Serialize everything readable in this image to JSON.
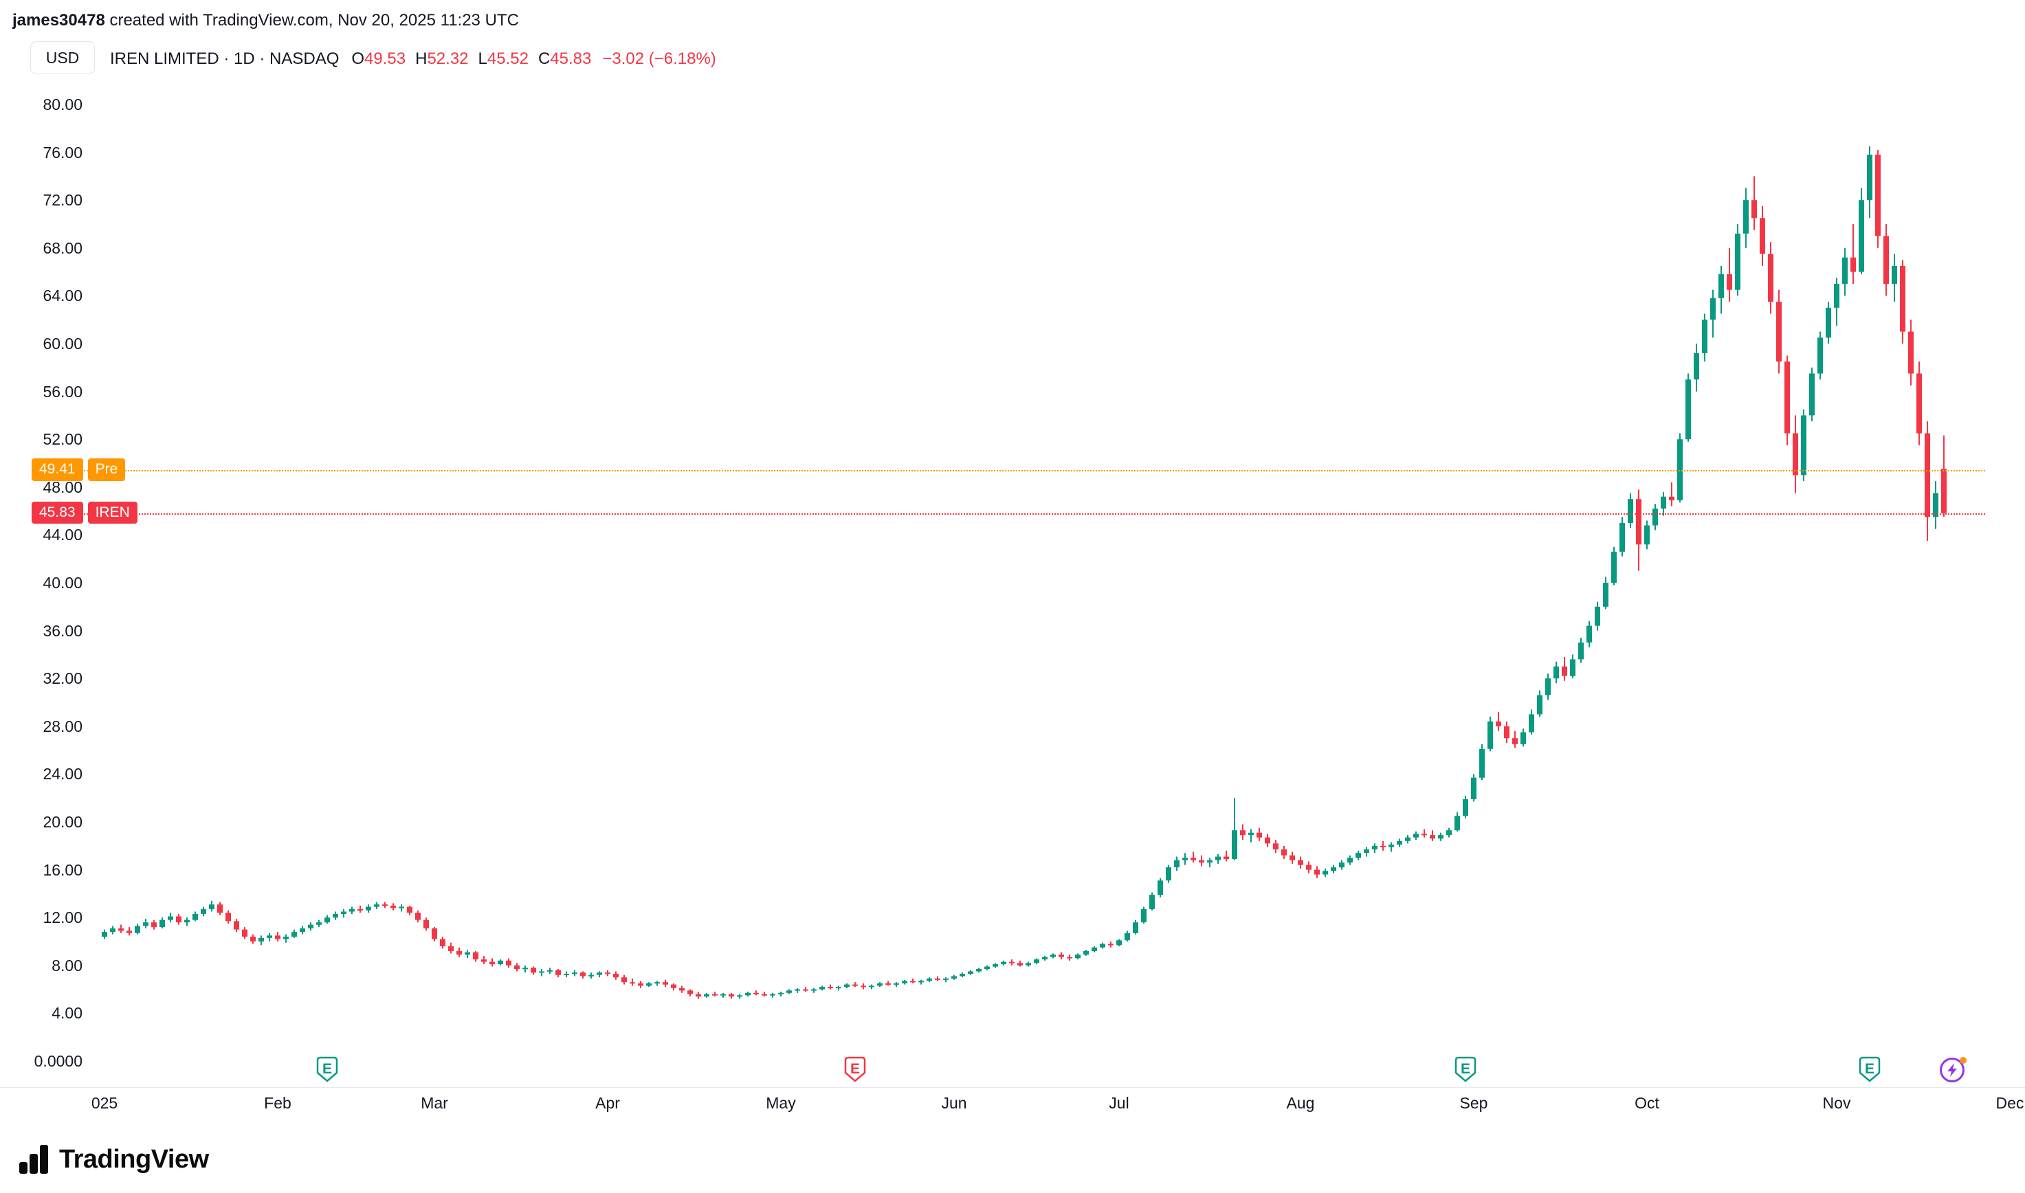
{
  "header": {
    "username": "james30478",
    "credit": " created with TradingView.com, Nov 20, 2025 11:23 UTC"
  },
  "toolbar": {
    "currency": "USD"
  },
  "legend": {
    "title": "IREN LIMITED · 1D · NASDAQ",
    "open_label": "O",
    "open": "49.53",
    "high_label": "H",
    "high": "52.32",
    "low_label": "L",
    "low": "45.52",
    "close_label": "C",
    "close": "45.83",
    "change": "−3.02 (−6.18%)"
  },
  "price_lines": {
    "premarket": {
      "value": "49.41",
      "tag": "Pre",
      "price": 49.41,
      "color": "#ff9800"
    },
    "last": {
      "value": "45.83",
      "tag": "IREN",
      "price": 45.83,
      "color": "#f23645"
    }
  },
  "footer": {
    "brand": "TradingView"
  },
  "colors": {
    "up": "#089981",
    "down": "#f23645",
    "pre_line": "#ff9800",
    "last_line": "#f23645",
    "text": "#131722",
    "upcoming": "#9334ea",
    "upcoming_dot": "#f7931a"
  },
  "chart_data": {
    "type": "candlestick",
    "title": "IREN LIMITED · 1D · NASDAQ",
    "ylabel": "USD",
    "ylim": [
      0,
      82
    ],
    "grid": false,
    "legend_position": "top-left",
    "earnings_letter": "E",
    "y_ticks": [
      {
        "price": 80,
        "label": "80.00"
      },
      {
        "price": 76,
        "label": "76.00"
      },
      {
        "price": 72,
        "label": "72.00"
      },
      {
        "price": 68,
        "label": "68.00"
      },
      {
        "price": 64,
        "label": "64.00"
      },
      {
        "price": 60,
        "label": "60.00"
      },
      {
        "price": 56,
        "label": "56.00"
      },
      {
        "price": 52,
        "label": "52.00"
      },
      {
        "price": 48,
        "label": "48.00"
      },
      {
        "price": 44,
        "label": "44.00"
      },
      {
        "price": 40,
        "label": "40.00"
      },
      {
        "price": 36,
        "label": "36.00"
      },
      {
        "price": 32,
        "label": "32.00"
      },
      {
        "price": 28,
        "label": "28.00"
      },
      {
        "price": 24,
        "label": "24.00"
      },
      {
        "price": 20,
        "label": "20.00"
      },
      {
        "price": 16,
        "label": "16.00"
      },
      {
        "price": 12,
        "label": "12.00"
      },
      {
        "price": 8,
        "label": "8.00"
      },
      {
        "price": 4,
        "label": "4.00"
      },
      {
        "price": 0,
        "label": "0.0000"
      }
    ],
    "x_ticks": [
      {
        "label": "025",
        "index": 0
      },
      {
        "label": "Feb",
        "index": 21
      },
      {
        "label": "Mar",
        "index": 40
      },
      {
        "label": "Apr",
        "index": 61
      },
      {
        "label": "May",
        "index": 82
      },
      {
        "label": "Jun",
        "index": 103
      },
      {
        "label": "Jul",
        "index": 123
      },
      {
        "label": "Aug",
        "index": 145
      },
      {
        "label": "Sep",
        "index": 166
      },
      {
        "label": "Oct",
        "index": 187
      },
      {
        "label": "Nov",
        "index": 210
      },
      {
        "label": "Dec",
        "index": 231
      }
    ],
    "earnings_markers": [
      {
        "index": 27,
        "color": "#089981"
      },
      {
        "index": 91,
        "color": "#f23645"
      },
      {
        "index": 165,
        "color": "#089981"
      },
      {
        "index": 214,
        "color": "#089981"
      }
    ],
    "upcoming_marker": {
      "index": 224
    },
    "candles": [
      [
        10.4,
        11.0,
        10.2,
        10.8
      ],
      [
        10.8,
        11.3,
        10.6,
        11.1
      ],
      [
        11.1,
        11.4,
        10.7,
        10.9
      ],
      [
        10.9,
        11.2,
        10.5,
        10.7
      ],
      [
        10.7,
        11.5,
        10.6,
        11.3
      ],
      [
        11.3,
        11.9,
        11.1,
        11.6
      ],
      [
        11.6,
        11.8,
        11.0,
        11.2
      ],
      [
        11.2,
        12.0,
        11.1,
        11.8
      ],
      [
        11.8,
        12.4,
        11.6,
        12.1
      ],
      [
        12.1,
        12.3,
        11.4,
        11.6
      ],
      [
        11.6,
        12.0,
        11.3,
        11.8
      ],
      [
        11.8,
        12.5,
        11.7,
        12.3
      ],
      [
        12.3,
        12.9,
        12.1,
        12.7
      ],
      [
        12.7,
        13.4,
        12.5,
        13.1
      ],
      [
        13.1,
        13.3,
        12.2,
        12.4
      ],
      [
        12.4,
        12.6,
        11.5,
        11.7
      ],
      [
        11.7,
        11.9,
        10.8,
        11.0
      ],
      [
        11.0,
        11.2,
        10.2,
        10.4
      ],
      [
        10.4,
        10.6,
        9.8,
        10.0
      ],
      [
        10.0,
        10.5,
        9.7,
        10.3
      ],
      [
        10.3,
        10.7,
        10.0,
        10.5
      ],
      [
        10.5,
        10.8,
        10.0,
        10.2
      ],
      [
        10.2,
        10.6,
        9.9,
        10.4
      ],
      [
        10.4,
        11.0,
        10.3,
        10.8
      ],
      [
        10.8,
        11.3,
        10.6,
        11.1
      ],
      [
        11.1,
        11.6,
        10.9,
        11.4
      ],
      [
        11.4,
        11.8,
        11.2,
        11.6
      ],
      [
        11.6,
        12.2,
        11.5,
        12.0
      ],
      [
        12.0,
        12.5,
        11.8,
        12.3
      ],
      [
        12.3,
        12.7,
        12.0,
        12.5
      ],
      [
        12.5,
        12.9,
        12.3,
        12.7
      ],
      [
        12.7,
        13.0,
        12.4,
        12.6
      ],
      [
        12.6,
        13.1,
        12.4,
        12.9
      ],
      [
        12.9,
        13.3,
        12.7,
        13.1
      ],
      [
        13.1,
        13.3,
        12.8,
        13.0
      ],
      [
        13.0,
        13.2,
        12.6,
        12.8
      ],
      [
        12.8,
        13.1,
        12.5,
        12.9
      ],
      [
        12.9,
        13.0,
        12.2,
        12.4
      ],
      [
        12.4,
        12.6,
        11.6,
        11.8
      ],
      [
        11.8,
        12.0,
        10.9,
        11.1
      ],
      [
        11.1,
        11.2,
        10.0,
        10.2
      ],
      [
        10.2,
        10.4,
        9.4,
        9.6
      ],
      [
        9.6,
        9.9,
        9.0,
        9.2
      ],
      [
        9.2,
        9.5,
        8.7,
        8.9
      ],
      [
        8.9,
        9.3,
        8.6,
        9.1
      ],
      [
        9.1,
        9.2,
        8.3,
        8.5
      ],
      [
        8.5,
        8.8,
        8.1,
        8.3
      ],
      [
        8.3,
        8.6,
        7.9,
        8.1
      ],
      [
        8.1,
        8.5,
        8.0,
        8.4
      ],
      [
        8.4,
        8.6,
        7.8,
        8.0
      ],
      [
        8.0,
        8.2,
        7.5,
        7.7
      ],
      [
        7.7,
        8.0,
        7.4,
        7.8
      ],
      [
        7.8,
        7.9,
        7.2,
        7.4
      ],
      [
        7.4,
        7.7,
        7.1,
        7.5
      ],
      [
        7.5,
        7.8,
        7.3,
        7.6
      ],
      [
        7.6,
        7.7,
        7.0,
        7.2
      ],
      [
        7.2,
        7.5,
        7.0,
        7.3
      ],
      [
        7.3,
        7.6,
        7.1,
        7.4
      ],
      [
        7.4,
        7.5,
        6.9,
        7.1
      ],
      [
        7.1,
        7.4,
        6.9,
        7.2
      ],
      [
        7.2,
        7.5,
        7.0,
        7.4
      ],
      [
        7.4,
        7.6,
        7.1,
        7.3
      ],
      [
        7.3,
        7.5,
        6.8,
        7.0
      ],
      [
        7.0,
        7.2,
        6.4,
        6.6
      ],
      [
        6.6,
        6.9,
        6.3,
        6.5
      ],
      [
        6.5,
        6.7,
        6.1,
        6.3
      ],
      [
        6.3,
        6.6,
        6.2,
        6.5
      ],
      [
        6.5,
        6.7,
        6.3,
        6.6
      ],
      [
        6.6,
        6.8,
        6.2,
        6.4
      ],
      [
        6.4,
        6.5,
        5.9,
        6.1
      ],
      [
        6.1,
        6.3,
        5.7,
        5.9
      ],
      [
        5.9,
        6.0,
        5.4,
        5.6
      ],
      [
        5.6,
        5.8,
        5.2,
        5.4
      ],
      [
        5.4,
        5.7,
        5.3,
        5.6
      ],
      [
        5.6,
        5.8,
        5.4,
        5.5
      ],
      [
        5.5,
        5.7,
        5.3,
        5.6
      ],
      [
        5.6,
        5.7,
        5.2,
        5.4
      ],
      [
        5.4,
        5.6,
        5.2,
        5.5
      ],
      [
        5.5,
        5.8,
        5.4,
        5.7
      ],
      [
        5.7,
        5.9,
        5.5,
        5.6
      ],
      [
        5.6,
        5.8,
        5.4,
        5.5
      ],
      [
        5.5,
        5.7,
        5.3,
        5.6
      ],
      [
        5.6,
        5.8,
        5.4,
        5.7
      ],
      [
        5.7,
        6.0,
        5.6,
        5.9
      ],
      [
        5.9,
        6.1,
        5.7,
        6.0
      ],
      [
        6.0,
        6.2,
        5.8,
        5.9
      ],
      [
        5.9,
        6.1,
        5.7,
        6.0
      ],
      [
        6.0,
        6.3,
        5.9,
        6.2
      ],
      [
        6.2,
        6.4,
        6.0,
        6.1
      ],
      [
        6.1,
        6.3,
        5.9,
        6.2
      ],
      [
        6.2,
        6.5,
        6.1,
        6.4
      ],
      [
        6.4,
        6.6,
        6.2,
        6.3
      ],
      [
        6.3,
        6.5,
        6.0,
        6.2
      ],
      [
        6.2,
        6.4,
        6.0,
        6.3
      ],
      [
        6.3,
        6.6,
        6.2,
        6.5
      ],
      [
        6.5,
        6.7,
        6.3,
        6.4
      ],
      [
        6.4,
        6.6,
        6.2,
        6.5
      ],
      [
        6.5,
        6.8,
        6.4,
        6.7
      ],
      [
        6.7,
        6.9,
        6.5,
        6.6
      ],
      [
        6.6,
        6.8,
        6.4,
        6.7
      ],
      [
        6.7,
        7.0,
        6.6,
        6.9
      ],
      [
        6.9,
        7.1,
        6.7,
        6.8
      ],
      [
        6.8,
        7.0,
        6.6,
        6.9
      ],
      [
        6.9,
        7.2,
        6.8,
        7.1
      ],
      [
        7.1,
        7.4,
        7.0,
        7.3
      ],
      [
        7.3,
        7.6,
        7.2,
        7.5
      ],
      [
        7.5,
        7.8,
        7.4,
        7.7
      ],
      [
        7.7,
        8.0,
        7.6,
        7.9
      ],
      [
        7.9,
        8.2,
        7.8,
        8.1
      ],
      [
        8.1,
        8.4,
        8.0,
        8.3
      ],
      [
        8.3,
        8.5,
        8.0,
        8.2
      ],
      [
        8.2,
        8.4,
        7.9,
        8.0
      ],
      [
        8.0,
        8.3,
        7.9,
        8.2
      ],
      [
        8.2,
        8.6,
        8.1,
        8.5
      ],
      [
        8.5,
        8.8,
        8.4,
        8.7
      ],
      [
        8.7,
        9.0,
        8.6,
        8.9
      ],
      [
        8.9,
        9.1,
        8.5,
        8.7
      ],
      [
        8.7,
        8.9,
        8.4,
        8.6
      ],
      [
        8.6,
        9.0,
        8.5,
        8.9
      ],
      [
        8.9,
        9.3,
        8.8,
        9.2
      ],
      [
        9.2,
        9.6,
        9.1,
        9.5
      ],
      [
        9.5,
        9.9,
        9.4,
        9.8
      ],
      [
        9.8,
        10.0,
        9.5,
        9.7
      ],
      [
        9.7,
        10.2,
        9.6,
        10.1
      ],
      [
        10.1,
        10.9,
        10.0,
        10.7
      ],
      [
        10.7,
        11.8,
        10.6,
        11.6
      ],
      [
        11.6,
        12.9,
        11.5,
        12.7
      ],
      [
        12.7,
        14.1,
        12.6,
        13.9
      ],
      [
        13.9,
        15.3,
        13.7,
        15.1
      ],
      [
        15.1,
        16.4,
        14.9,
        16.2
      ],
      [
        16.2,
        17.1,
        15.9,
        16.8
      ],
      [
        16.8,
        17.4,
        16.4,
        17.0
      ],
      [
        17.0,
        17.5,
        16.6,
        16.8
      ],
      [
        16.8,
        17.2,
        16.3,
        16.6
      ],
      [
        16.6,
        17.0,
        16.2,
        16.8
      ],
      [
        16.8,
        17.3,
        16.5,
        17.1
      ],
      [
        17.1,
        17.6,
        16.7,
        16.9
      ],
      [
        16.9,
        22.0,
        16.8,
        19.3
      ],
      [
        19.3,
        19.8,
        18.5,
        18.9
      ],
      [
        18.9,
        19.4,
        18.3,
        19.1
      ],
      [
        19.1,
        19.5,
        18.4,
        18.7
      ],
      [
        18.7,
        19.0,
        17.9,
        18.2
      ],
      [
        18.2,
        18.5,
        17.4,
        17.7
      ],
      [
        17.7,
        18.0,
        16.9,
        17.2
      ],
      [
        17.2,
        17.5,
        16.5,
        16.8
      ],
      [
        16.8,
        17.1,
        16.1,
        16.4
      ],
      [
        16.4,
        16.7,
        15.7,
        16.0
      ],
      [
        16.0,
        16.3,
        15.3,
        15.6
      ],
      [
        15.6,
        16.1,
        15.4,
        15.9
      ],
      [
        15.9,
        16.4,
        15.7,
        16.2
      ],
      [
        16.2,
        16.8,
        16.0,
        16.6
      ],
      [
        16.6,
        17.2,
        16.4,
        17.0
      ],
      [
        17.0,
        17.6,
        16.8,
        17.4
      ],
      [
        17.4,
        17.9,
        17.1,
        17.7
      ],
      [
        17.7,
        18.2,
        17.4,
        18.0
      ],
      [
        18.0,
        18.4,
        17.6,
        17.9
      ],
      [
        17.9,
        18.3,
        17.5,
        18.1
      ],
      [
        18.1,
        18.6,
        17.9,
        18.4
      ],
      [
        18.4,
        18.9,
        18.2,
        18.7
      ],
      [
        18.7,
        19.2,
        18.5,
        19.0
      ],
      [
        19.0,
        19.4,
        18.7,
        18.9
      ],
      [
        18.9,
        19.3,
        18.4,
        18.6
      ],
      [
        18.6,
        19.1,
        18.4,
        18.9
      ],
      [
        18.9,
        19.5,
        18.7,
        19.3
      ],
      [
        19.3,
        20.8,
        19.2,
        20.5
      ],
      [
        20.5,
        22.2,
        20.3,
        21.9
      ],
      [
        21.9,
        24.0,
        21.7,
        23.7
      ],
      [
        23.7,
        26.5,
        23.5,
        26.1
      ],
      [
        26.1,
        28.8,
        25.9,
        28.4
      ],
      [
        28.4,
        29.2,
        27.6,
        28.0
      ],
      [
        28.0,
        28.4,
        26.6,
        27.0
      ],
      [
        27.0,
        27.6,
        26.2,
        26.5
      ],
      [
        26.5,
        27.8,
        26.3,
        27.5
      ],
      [
        27.5,
        29.4,
        27.3,
        29.0
      ],
      [
        29.0,
        31.0,
        28.8,
        30.6
      ],
      [
        30.6,
        32.4,
        30.2,
        32.0
      ],
      [
        32.0,
        33.4,
        31.6,
        33.0
      ],
      [
        33.0,
        33.8,
        31.8,
        32.2
      ],
      [
        32.2,
        34.0,
        32.0,
        33.6
      ],
      [
        33.6,
        35.4,
        33.3,
        35.0
      ],
      [
        35.0,
        36.8,
        34.6,
        36.4
      ],
      [
        36.4,
        38.4,
        36.0,
        38.0
      ],
      [
        38.0,
        40.5,
        37.8,
        40.0
      ],
      [
        40.0,
        43.0,
        39.8,
        42.6
      ],
      [
        42.6,
        45.5,
        42.2,
        45.0
      ],
      [
        45.0,
        47.5,
        44.6,
        47.0
      ],
      [
        47.0,
        47.8,
        41.0,
        43.2
      ],
      [
        43.2,
        45.2,
        42.8,
        44.8
      ],
      [
        44.8,
        46.6,
        44.4,
        46.2
      ],
      [
        46.2,
        47.6,
        45.6,
        47.2
      ],
      [
        47.2,
        48.4,
        46.4,
        46.9
      ],
      [
        46.9,
        52.5,
        46.7,
        52.0
      ],
      [
        52.0,
        57.5,
        51.8,
        57.0
      ],
      [
        57.0,
        60.0,
        56.0,
        59.2
      ],
      [
        59.2,
        62.5,
        58.5,
        62.0
      ],
      [
        62.0,
        64.5,
        60.5,
        63.8
      ],
      [
        63.8,
        66.5,
        62.5,
        65.8
      ],
      [
        65.8,
        68.0,
        63.5,
        64.5
      ],
      [
        64.5,
        70.0,
        64.0,
        69.2
      ],
      [
        69.2,
        73.0,
        68.0,
        72.0
      ],
      [
        72.0,
        74.0,
        69.5,
        70.5
      ],
      [
        70.5,
        71.5,
        66.5,
        67.5
      ],
      [
        67.5,
        68.5,
        62.5,
        63.5
      ],
      [
        63.5,
        64.5,
        57.5,
        58.5
      ],
      [
        58.5,
        59.0,
        51.5,
        52.5
      ],
      [
        52.5,
        54.0,
        47.5,
        49.0
      ],
      [
        49.0,
        54.5,
        48.5,
        54.0
      ],
      [
        54.0,
        58.0,
        53.5,
        57.5
      ],
      [
        57.5,
        61.0,
        57.0,
        60.5
      ],
      [
        60.5,
        63.5,
        60.0,
        63.0
      ],
      [
        63.0,
        65.5,
        61.5,
        65.0
      ],
      [
        65.0,
        68.0,
        64.0,
        67.2
      ],
      [
        67.2,
        70.0,
        65.0,
        66.0
      ],
      [
        66.0,
        73.0,
        65.8,
        72.0
      ],
      [
        72.0,
        76.5,
        70.5,
        75.8
      ],
      [
        75.8,
        76.2,
        68.0,
        69.0
      ],
      [
        69.0,
        70.0,
        64.0,
        65.0
      ],
      [
        65.0,
        67.5,
        63.5,
        66.5
      ],
      [
        66.5,
        67.0,
        60.0,
        61.0
      ],
      [
        61.0,
        62.0,
        56.5,
        57.5
      ],
      [
        57.5,
        58.5,
        51.5,
        52.5
      ],
      [
        52.5,
        53.5,
        43.5,
        45.5
      ],
      [
        45.5,
        48.5,
        44.5,
        47.5
      ],
      [
        49.53,
        52.32,
        45.52,
        45.83
      ]
    ]
  }
}
